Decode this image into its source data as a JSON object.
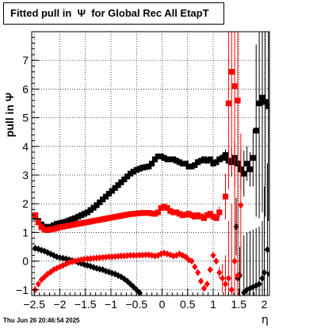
{
  "title": "Fitted pull in  Ψ  for Global Rec All EtapT",
  "timestamp": "Thu Jun 26 20:46:54 2025",
  "chart_data": {
    "type": "scatter",
    "title": "Fitted pull in  Ψ  for Global Rec All EtapT",
    "xlabel": "η",
    "ylabel": "pull in  Ψ",
    "xlim": [
      -2.55,
      2.1
    ],
    "ylim": [
      -1.2,
      8.0
    ],
    "grid": true,
    "x_ticks": [
      -2.5,
      -2,
      -1.5,
      -1,
      -0.5,
      0,
      0.5,
      1,
      1.5,
      2
    ],
    "x_tick_labels": [
      "−2.5",
      "−2",
      "−1.5",
      "−1",
      "−0.5",
      "0",
      "0.5",
      "1",
      "1.5",
      "2"
    ],
    "y_ticks": [
      -1,
      0,
      1,
      2,
      3,
      4,
      5,
      6,
      7
    ],
    "y_tick_labels": [
      "−1",
      "0",
      "1",
      "2",
      "3",
      "4",
      "5",
      "6",
      "7"
    ],
    "series": [
      {
        "color": "#000000",
        "marker": "square",
        "x": [
          -2.48,
          -2.42,
          -2.36,
          -2.3,
          -2.24,
          -2.18,
          -2.12,
          -2.06,
          -2.0,
          -1.94,
          -1.88,
          -1.82,
          -1.76,
          -1.7,
          -1.64,
          -1.58,
          -1.52,
          -1.46,
          -1.4,
          -1.34,
          -1.28,
          -1.22,
          -1.16,
          -1.1,
          -1.04,
          -0.98,
          -0.92,
          -0.86,
          -0.8,
          -0.74,
          -0.68,
          -0.62,
          -0.56,
          -0.5,
          -0.44,
          -0.38,
          -0.32,
          -0.26,
          -0.2,
          -0.14,
          -0.08,
          -0.02,
          0.04,
          0.1,
          0.16,
          0.22,
          0.28,
          0.34,
          0.4,
          0.46,
          0.52,
          0.58,
          0.64,
          0.7,
          0.76,
          0.82,
          0.88,
          0.94,
          1.0,
          1.06,
          1.12,
          1.18,
          1.24,
          1.3,
          1.36,
          1.42,
          1.48,
          1.54,
          1.6,
          1.66,
          1.72,
          1.78,
          1.84,
          1.9,
          1.96,
          2.02,
          2.08
        ],
        "y": [
          1.55,
          1.4,
          1.28,
          1.2,
          1.18,
          1.2,
          1.25,
          1.3,
          1.32,
          1.35,
          1.38,
          1.42,
          1.46,
          1.5,
          1.55,
          1.6,
          1.65,
          1.7,
          1.78,
          1.86,
          1.95,
          2.05,
          2.15,
          2.25,
          2.35,
          2.45,
          2.55,
          2.65,
          2.75,
          2.85,
          2.95,
          3.05,
          3.12,
          3.18,
          3.22,
          3.26,
          3.28,
          3.3,
          3.4,
          3.55,
          3.65,
          3.65,
          3.6,
          3.55,
          3.55,
          3.55,
          3.5,
          3.45,
          3.4,
          3.4,
          3.3,
          3.3,
          3.35,
          3.45,
          3.5,
          3.55,
          3.5,
          3.55,
          3.4,
          3.45,
          3.55,
          3.6,
          3.7,
          3.5,
          3.45,
          3.6,
          3.4,
          3.2,
          3.05,
          3.4,
          3.2,
          3.6,
          4.55,
          5.5,
          5.7,
          5.55,
          5.4
        ],
        "err": [
          0.05,
          0.05,
          0.05,
          0.05,
          0.05,
          0.05,
          0.05,
          0.05,
          0.05,
          0.05,
          0.05,
          0.05,
          0.05,
          0.05,
          0.05,
          0.05,
          0.05,
          0.05,
          0.05,
          0.05,
          0.05,
          0.05,
          0.05,
          0.05,
          0.05,
          0.05,
          0.05,
          0.05,
          0.05,
          0.05,
          0.05,
          0.05,
          0.05,
          0.05,
          0.05,
          0.05,
          0.05,
          0.05,
          0.05,
          0.05,
          0.05,
          0.05,
          0.05,
          0.05,
          0.05,
          0.05,
          0.05,
          0.05,
          0.05,
          0.05,
          0.05,
          0.05,
          0.05,
          0.05,
          0.05,
          0.05,
          0.05,
          0.05,
          0.05,
          0.05,
          0.1,
          0.15,
          0.2,
          0.3,
          0.5,
          0.6,
          0.6,
          0.7,
          0.8,
          0.6,
          0.6,
          1.0,
          3.0,
          4.0,
          4.0,
          4.0,
          4.0
        ]
      },
      {
        "color": "#ff0000",
        "marker": "square",
        "x": [
          -2.48,
          -2.42,
          -2.36,
          -2.3,
          -2.24,
          -2.18,
          -2.12,
          -2.06,
          -2.0,
          -1.94,
          -1.88,
          -1.82,
          -1.76,
          -1.7,
          -1.64,
          -1.58,
          -1.52,
          -1.46,
          -1.4,
          -1.34,
          -1.28,
          -1.22,
          -1.16,
          -1.1,
          -1.04,
          -0.98,
          -0.92,
          -0.86,
          -0.8,
          -0.74,
          -0.68,
          -0.62,
          -0.56,
          -0.5,
          -0.44,
          -0.38,
          -0.32,
          -0.26,
          -0.2,
          -0.14,
          -0.08,
          -0.02,
          0.04,
          0.1,
          0.16,
          0.22,
          0.28,
          0.34,
          0.4,
          0.46,
          0.52,
          0.58,
          0.64,
          0.7,
          0.76,
          0.82,
          0.88,
          0.94,
          1.0,
          1.06,
          1.12,
          1.24,
          1.3,
          1.36,
          1.42,
          1.48
        ],
        "y": [
          1.6,
          1.35,
          1.18,
          1.1,
          1.08,
          1.1,
          1.12,
          1.15,
          1.18,
          1.2,
          1.22,
          1.24,
          1.26,
          1.28,
          1.3,
          1.32,
          1.34,
          1.36,
          1.38,
          1.4,
          1.42,
          1.44,
          1.46,
          1.48,
          1.5,
          1.52,
          1.54,
          1.56,
          1.58,
          1.6,
          1.62,
          1.64,
          1.65,
          1.66,
          1.67,
          1.68,
          1.68,
          1.68,
          1.66,
          1.65,
          1.7,
          1.85,
          1.9,
          1.85,
          1.75,
          1.7,
          1.7,
          1.65,
          1.6,
          1.62,
          1.65,
          1.6,
          1.55,
          1.6,
          1.55,
          1.5,
          1.6,
          1.65,
          1.55,
          1.5,
          1.7,
          2.25,
          5.5,
          6.6,
          6.1,
          5.6
        ],
        "err": [
          0.05,
          0.05,
          0.05,
          0.05,
          0.05,
          0.05,
          0.05,
          0.05,
          0.05,
          0.05,
          0.05,
          0.05,
          0.05,
          0.05,
          0.05,
          0.05,
          0.05,
          0.05,
          0.05,
          0.05,
          0.05,
          0.05,
          0.05,
          0.05,
          0.05,
          0.05,
          0.05,
          0.05,
          0.05,
          0.05,
          0.05,
          0.05,
          0.05,
          0.05,
          0.05,
          0.05,
          0.05,
          0.05,
          0.05,
          0.05,
          0.05,
          0.05,
          0.05,
          0.05,
          0.05,
          0.05,
          0.05,
          0.05,
          0.05,
          0.05,
          0.05,
          0.05,
          0.05,
          0.05,
          0.05,
          0.05,
          0.05,
          0.05,
          0.05,
          0.1,
          0.2,
          0.8,
          3.0,
          3.5,
          3.5,
          3.5
        ]
      },
      {
        "color": "#000000",
        "marker": "diamond",
        "x": [
          -2.48,
          -2.42,
          -2.36,
          -2.3,
          -2.24,
          -2.18,
          -2.12,
          -2.06,
          -2.0,
          -1.94,
          -1.88,
          -1.82,
          -1.76,
          -1.7,
          -1.64,
          -1.58,
          -1.52,
          -1.46,
          -1.4,
          -1.34,
          -1.28,
          -1.22,
          -1.16,
          -1.1,
          -1.04,
          -0.98,
          -0.92,
          -0.86,
          -0.8,
          -0.74,
          -0.68,
          -0.62,
          -0.56,
          -0.5,
          -0.44,
          1.45,
          1.48,
          1.52,
          1.6,
          1.66,
          1.72,
          1.78,
          1.84,
          1.9,
          1.96,
          2.0,
          2.06,
          2.1
        ],
        "y": [
          0.45,
          0.42,
          0.38,
          0.35,
          0.3,
          0.25,
          0.2,
          0.15,
          0.12,
          0.1,
          0.08,
          0.05,
          0.02,
          0.0,
          -0.05,
          -0.08,
          -0.12,
          -0.15,
          -0.18,
          -0.22,
          -0.25,
          -0.28,
          -0.3,
          -0.35,
          -0.38,
          -0.42,
          -0.45,
          -0.5,
          -0.55,
          -0.62,
          -0.7,
          -0.8,
          -0.9,
          -1.0,
          -1.1,
          1.2,
          -0.6,
          -0.5,
          -1.1,
          -1.0,
          -0.95,
          -0.9,
          -0.85,
          -0.8,
          -0.6,
          -0.4,
          0.4,
          -0.45
        ],
        "err": [
          0.05,
          0.05,
          0.05,
          0.05,
          0.05,
          0.05,
          0.05,
          0.05,
          0.05,
          0.05,
          0.05,
          0.05,
          0.05,
          0.05,
          0.05,
          0.05,
          0.05,
          0.05,
          0.05,
          0.05,
          0.05,
          0.05,
          0.05,
          0.05,
          0.05,
          0.05,
          0.05,
          0.05,
          0.05,
          0.05,
          0.05,
          0.05,
          0.05,
          0.05,
          0.05,
          1.0,
          1.0,
          1.0,
          2.0,
          2.0,
          2.0,
          2.0,
          2.0,
          2.0,
          2.0,
          3.0,
          3.0,
          2.0
        ]
      },
      {
        "color": "#ff0000",
        "marker": "diamond",
        "x": [
          -2.48,
          -2.42,
          -2.36,
          -2.3,
          -2.24,
          -2.18,
          -2.12,
          -2.06,
          -2.0,
          -1.94,
          -1.88,
          -1.82,
          -1.76,
          -1.7,
          -1.64,
          -1.58,
          -1.52,
          -1.46,
          -1.4,
          -1.34,
          -1.28,
          -1.22,
          -1.16,
          -1.1,
          -1.04,
          -0.98,
          -0.92,
          -0.86,
          -0.8,
          -0.74,
          -0.68,
          -0.62,
          -0.56,
          -0.5,
          -0.44,
          -0.38,
          -0.32,
          -0.26,
          -0.2,
          -0.14,
          -0.08,
          -0.02,
          0.04,
          0.1,
          0.16,
          0.22,
          0.28,
          0.34,
          0.4,
          0.46,
          0.52,
          0.58,
          0.64,
          0.7,
          0.76,
          0.82,
          0.88,
          0.94,
          1.0,
          1.06,
          1.12,
          1.18,
          1.24,
          1.3,
          1.36,
          1.42,
          1.48,
          1.54
        ],
        "y": [
          -1.0,
          -0.8,
          -0.65,
          -0.55,
          -0.45,
          -0.38,
          -0.3,
          -0.25,
          -0.2,
          -0.15,
          -0.1,
          -0.05,
          -0.02,
          0.0,
          0.03,
          0.05,
          0.07,
          0.08,
          0.09,
          0.1,
          0.11,
          0.12,
          0.13,
          0.14,
          0.15,
          0.15,
          0.16,
          0.17,
          0.18,
          0.18,
          0.19,
          0.2,
          0.2,
          0.2,
          0.21,
          0.21,
          0.22,
          0.22,
          0.2,
          0.18,
          0.2,
          0.25,
          0.28,
          0.25,
          0.22,
          0.18,
          0.2,
          0.25,
          0.2,
          0.15,
          0.05,
          0.0,
          -0.2,
          -0.4,
          -0.7,
          -0.95,
          -0.8,
          -0.3,
          0.2,
          0.0,
          -0.4,
          -0.6,
          -0.8,
          -0.6,
          -1.0,
          0.0,
          -0.5,
          1.95
        ],
        "err": [
          0.05,
          0.05,
          0.05,
          0.05,
          0.05,
          0.05,
          0.05,
          0.05,
          0.05,
          0.05,
          0.05,
          0.05,
          0.05,
          0.05,
          0.05,
          0.05,
          0.05,
          0.05,
          0.05,
          0.05,
          0.05,
          0.05,
          0.05,
          0.05,
          0.05,
          0.05,
          0.05,
          0.05,
          0.05,
          0.05,
          0.05,
          0.05,
          0.05,
          0.05,
          0.05,
          0.05,
          0.05,
          0.05,
          0.05,
          0.05,
          0.05,
          0.05,
          0.05,
          0.05,
          0.05,
          0.05,
          0.05,
          0.05,
          0.05,
          0.05,
          0.05,
          0.05,
          0.05,
          0.05,
          0.1,
          0.1,
          0.1,
          0.1,
          0.1,
          0.1,
          0.2,
          0.5,
          1.0,
          2.0,
          3.0,
          3.0,
          3.0,
          2.5
        ]
      }
    ]
  }
}
